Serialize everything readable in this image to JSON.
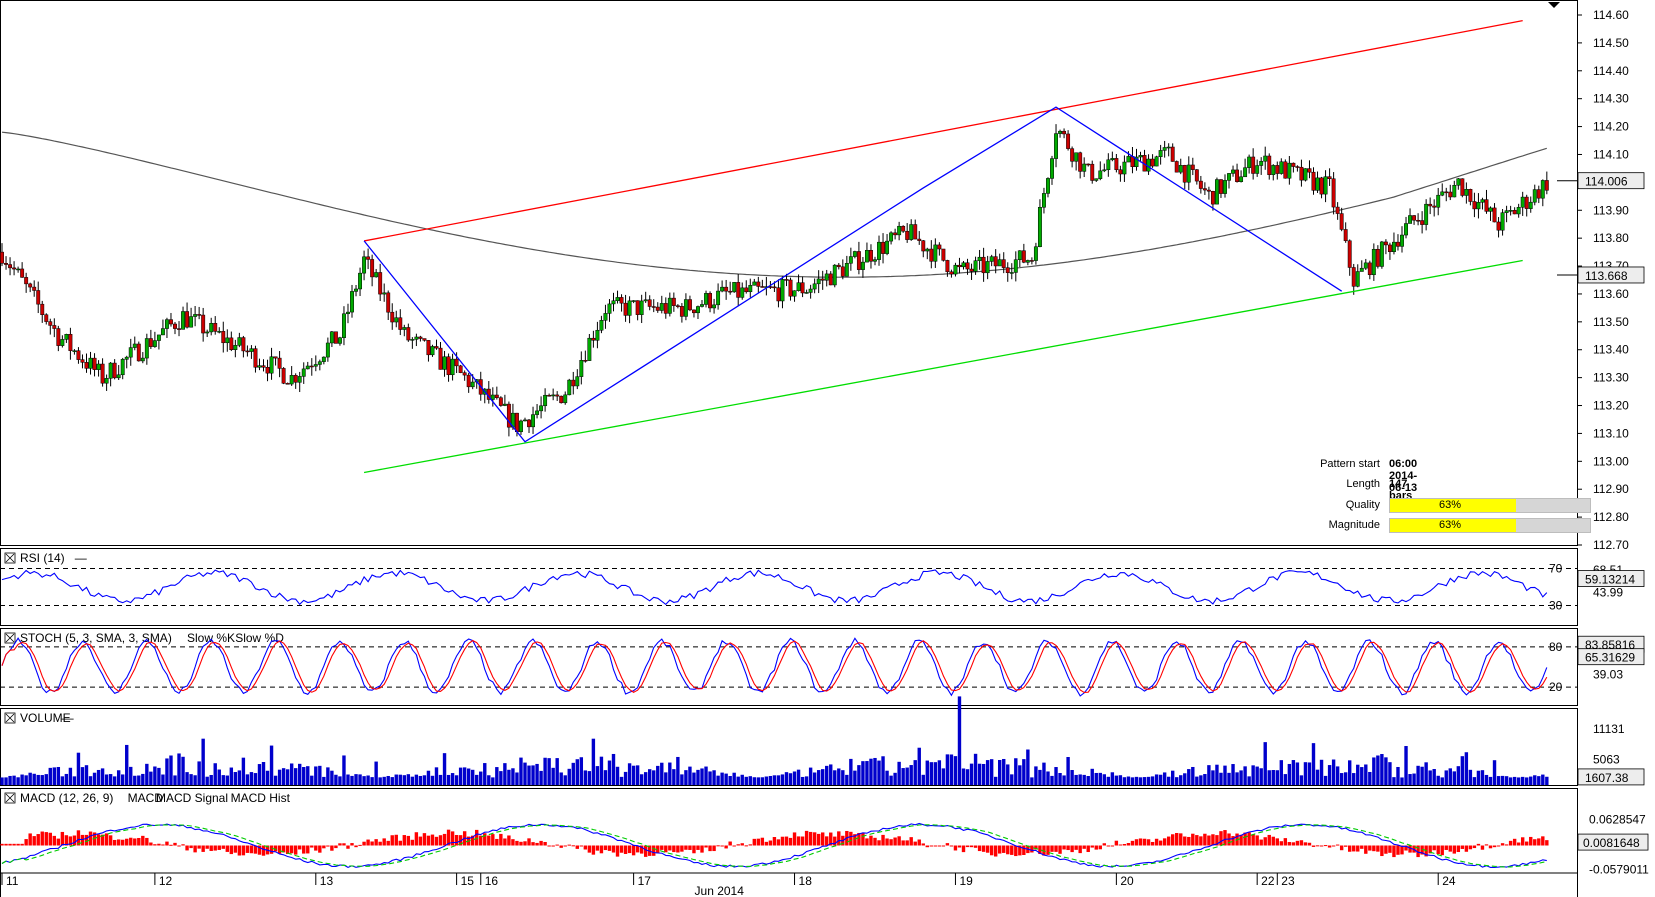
{
  "chart_data": {
    "type": "candlestick",
    "main": {
      "price_ticks": [
        "114.60",
        "114.50",
        "114.40",
        "114.30",
        "114.20",
        "114.10",
        "114.00",
        "113.90",
        "113.80",
        "113.70",
        "113.60",
        "113.50",
        "113.40",
        "113.30",
        "113.20",
        "113.10",
        "113.00",
        "112.90",
        "112.80",
        "112.70"
      ],
      "ylim": [
        112.7,
        114.6
      ],
      "current_price": "114.006",
      "ma_label": "113.668",
      "ma_last": 113.668,
      "resistance_line": {
        "x": [
          90,
          378
        ],
        "y": [
          113.79,
          114.58
        ]
      },
      "support_line": {
        "x": [
          90,
          378
        ],
        "y": [
          112.96,
          113.72
        ]
      },
      "pattern_path": [
        {
          "x": 90,
          "y": 113.79
        },
        {
          "x": 130,
          "y": 113.07
        },
        {
          "x": 229,
          "y": 113.98
        },
        {
          "x": 262,
          "y": 114.27
        },
        {
          "x": 333,
          "y": 113.61
        }
      ],
      "pattern_info": {
        "pattern_start_label": "Pattern start",
        "pattern_start": "06:00 2014-06-13",
        "length_label": "Length",
        "length": "147 bars",
        "quality_label": "Quality",
        "quality": "63%",
        "quality_value": 63,
        "magnitude_label": "Magnitude",
        "magnitude": "63%",
        "magnitude_value": 63
      }
    },
    "rsi": {
      "title": "RSI (14)",
      "levels": [
        "70",
        "30"
      ],
      "ticks": [
        "68.51",
        "43.99"
      ],
      "current": "59.13214"
    },
    "stoch": {
      "title": "STOCH (5, 3, SMA, 3, SMA)",
      "k_label": "Slow %K",
      "d_label": "Slow %D",
      "levels": [
        "80",
        "20"
      ],
      "ticks": [
        "39.03"
      ],
      "k_current": "83.85816",
      "d_current": "65.31629"
    },
    "volume": {
      "title": "VOLUME",
      "ticks": [
        "11131",
        "5063"
      ],
      "current": "1607.38"
    },
    "macd": {
      "title": "MACD (12, 26, 9)",
      "macd_label": "MACD",
      "signal_label": "MACD Signal",
      "hist_label": "MACD Hist",
      "ticks": [
        "0.0628547",
        "-0.0579011"
      ],
      "current": "0.0081648"
    },
    "x_axis": {
      "labels": [
        {
          "text": "11",
          "x": 0
        },
        {
          "text": "12",
          "x": 38
        },
        {
          "text": "13",
          "x": 78
        },
        {
          "text": "15",
          "x": 113
        },
        {
          "text": "16",
          "x": 119
        },
        {
          "text": "17",
          "x": 157
        },
        {
          "text": "18",
          "x": 197
        },
        {
          "text": "19",
          "x": 237
        },
        {
          "text": "20",
          "x": 277
        },
        {
          "text": "22",
          "x": 312
        },
        {
          "text": "23",
          "x": 317
        },
        {
          "text": "24",
          "x": 357
        }
      ],
      "month": "Jun 2014"
    },
    "colors": {
      "bull": "#00aa00",
      "bear": "#cc0000",
      "resistance": "#ff0000",
      "support": "#00dd00",
      "pattern": "#0000ff",
      "ma": "#555555",
      "volume": "#0000cc",
      "macd_signal": "#00cc00"
    }
  }
}
